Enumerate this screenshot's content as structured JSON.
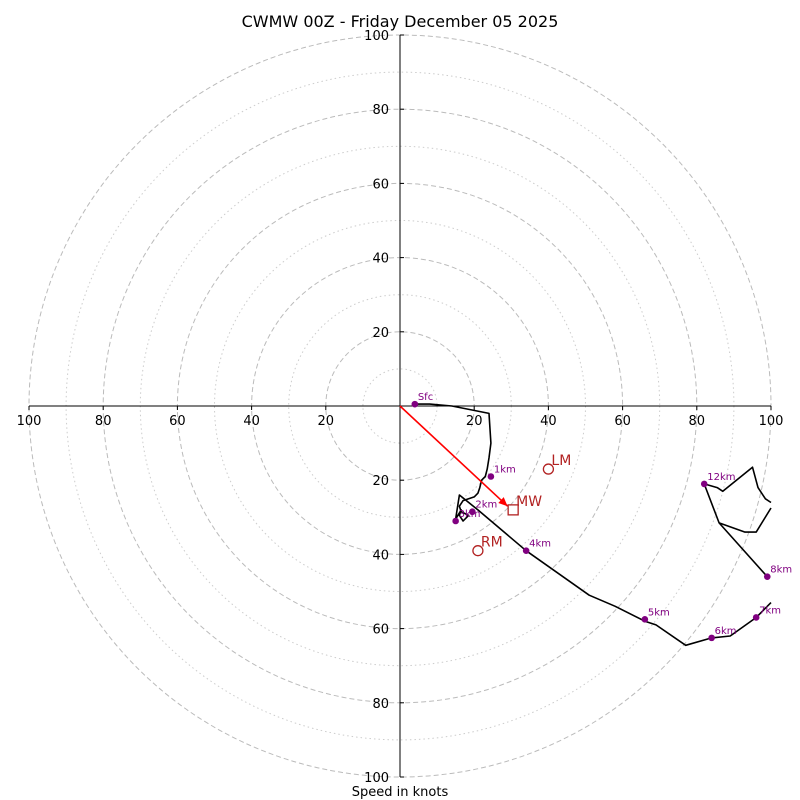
{
  "chart_data": {
    "type": "hodograph",
    "title": "CWMW 00Z - Friday December 05 2025",
    "xlabel": "Speed in knots",
    "range": [
      -100,
      100
    ],
    "ring_major": [
      20,
      40,
      60,
      80,
      100
    ],
    "ring_minor": [
      10,
      30,
      50,
      70,
      90
    ],
    "tick_values": [
      20,
      40,
      60,
      80,
      100
    ],
    "tick_labels": {
      "20": "20",
      "40": "40",
      "60": "60",
      "80": "80",
      "100": "100"
    },
    "colors": {
      "grid": "#bbbbbb",
      "trace": "#000000",
      "height_marker": "#800080",
      "motion": "#b22222",
      "mean_wind_vector": "#ff0000"
    },
    "hodograph_trace": [
      [
        4,
        0.5
      ],
      [
        8,
        0.5
      ],
      [
        14,
        0
      ],
      [
        24,
        -2
      ],
      [
        24.5,
        -10
      ],
      [
        24,
        -14
      ],
      [
        23.5,
        -17
      ],
      [
        23,
        -19
      ],
      [
        22,
        -20
      ],
      [
        21.5,
        -22
      ],
      [
        21,
        -23.5
      ],
      [
        20,
        -24.5
      ],
      [
        17,
        -25.5
      ],
      [
        16,
        -27
      ],
      [
        16.5,
        -28.5
      ],
      [
        18.5,
        -29.5
      ],
      [
        17,
        -31
      ],
      [
        16,
        -29.5
      ],
      [
        16.5,
        -28
      ],
      [
        15,
        -30.5
      ],
      [
        16,
        -24
      ],
      [
        21,
        -28
      ],
      [
        34,
        -39
      ],
      [
        51,
        -51
      ],
      [
        58,
        -54
      ],
      [
        66,
        -58
      ],
      [
        69,
        -59
      ],
      [
        77,
        -64.5
      ],
      [
        84,
        -62.5
      ],
      [
        89,
        -62
      ],
      [
        96,
        -57
      ],
      [
        100,
        -53
      ]
    ],
    "hodograph_trace_upper": [
      [
        100,
        -26
      ],
      [
        98.5,
        -25
      ],
      [
        96.5,
        -22
      ],
      [
        95,
        -16.5
      ],
      [
        87,
        -23
      ],
      [
        85.5,
        -22
      ],
      [
        82,
        -21
      ],
      [
        86,
        -31.5
      ],
      [
        93,
        -34
      ],
      [
        96,
        -34
      ],
      [
        100,
        -27.5
      ]
    ],
    "hodograph_trace_connector": [
      [
        86,
        -31.5
      ],
      [
        99,
        -46
      ]
    ],
    "height_markers": [
      {
        "label": "Sfc",
        "u": 4,
        "v": 0.5
      },
      {
        "label": "1km",
        "u": 24.5,
        "v": -19
      },
      {
        "label": "2km",
        "u": 19.5,
        "v": -28.5
      },
      {
        "label": "3km",
        "u": 15,
        "v": -31
      },
      {
        "label": "4km",
        "u": 34,
        "v": -39
      },
      {
        "label": "5km",
        "u": 66,
        "v": -57.5
      },
      {
        "label": "6km",
        "u": 84,
        "v": -62.5
      },
      {
        "label": "7km",
        "u": 96,
        "v": -57
      },
      {
        "label": "8km",
        "u": 99,
        "v": -46
      },
      {
        "label": "12km",
        "u": 82,
        "v": -21
      }
    ],
    "storm_motion": [
      {
        "label": "LM",
        "u": 40,
        "v": -17,
        "marker": "circle"
      },
      {
        "label": "RM",
        "u": 21,
        "v": -39,
        "marker": "circle"
      },
      {
        "label": "MW",
        "u": 30.5,
        "v": -28,
        "marker": "square"
      }
    ],
    "mean_wind_vector": {
      "from": [
        0,
        0
      ],
      "to": [
        29,
        -27
      ]
    }
  }
}
